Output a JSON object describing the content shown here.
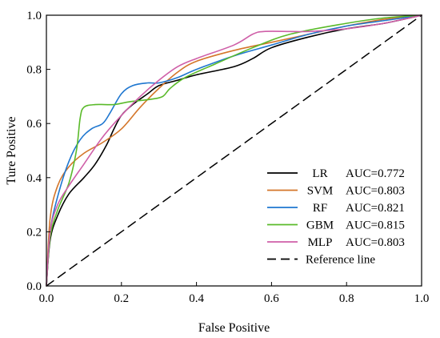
{
  "chart_data": {
    "type": "line",
    "xlabel": "False Positive",
    "ylabel": "Ture Positive",
    "xlim": [
      0,
      1
    ],
    "ylim": [
      0,
      1
    ],
    "xticks": [
      "0.0",
      "0.2",
      "0.4",
      "0.6",
      "0.8",
      "1.0"
    ],
    "yticks": [
      "0.0",
      "0.2",
      "0.4",
      "0.6",
      "0.8",
      "1.0"
    ],
    "grid": false,
    "legend_position": "bottom-right",
    "series": [
      {
        "name": "LR",
        "auc": "AUC=0.772",
        "color": "#000000",
        "points": [
          [
            0,
            0
          ],
          [
            0.01,
            0.17
          ],
          [
            0.03,
            0.26
          ],
          [
            0.06,
            0.34
          ],
          [
            0.1,
            0.4
          ],
          [
            0.13,
            0.45
          ],
          [
            0.16,
            0.52
          ],
          [
            0.18,
            0.58
          ],
          [
            0.2,
            0.63
          ],
          [
            0.23,
            0.67
          ],
          [
            0.27,
            0.71
          ],
          [
            0.3,
            0.74
          ],
          [
            0.35,
            0.76
          ],
          [
            0.4,
            0.78
          ],
          [
            0.5,
            0.81
          ],
          [
            0.55,
            0.84
          ],
          [
            0.6,
            0.88
          ],
          [
            0.7,
            0.92
          ],
          [
            0.8,
            0.95
          ],
          [
            0.9,
            0.97
          ],
          [
            1,
            1
          ]
        ]
      },
      {
        "name": "SVM",
        "auc": "AUC=0.803",
        "color": "#d4762a",
        "points": [
          [
            0,
            0
          ],
          [
            0.01,
            0.25
          ],
          [
            0.03,
            0.37
          ],
          [
            0.06,
            0.44
          ],
          [
            0.1,
            0.49
          ],
          [
            0.15,
            0.53
          ],
          [
            0.2,
            0.58
          ],
          [
            0.25,
            0.66
          ],
          [
            0.3,
            0.73
          ],
          [
            0.35,
            0.79
          ],
          [
            0.4,
            0.83
          ],
          [
            0.5,
            0.87
          ],
          [
            0.6,
            0.9
          ],
          [
            0.7,
            0.93
          ],
          [
            0.8,
            0.96
          ],
          [
            0.9,
            0.985
          ],
          [
            1,
            1
          ]
        ]
      },
      {
        "name": "RF",
        "auc": "AUC=0.821",
        "color": "#1f77d0",
        "points": [
          [
            0,
            0
          ],
          [
            0.01,
            0.2
          ],
          [
            0.03,
            0.33
          ],
          [
            0.06,
            0.46
          ],
          [
            0.09,
            0.54
          ],
          [
            0.12,
            0.58
          ],
          [
            0.15,
            0.6
          ],
          [
            0.17,
            0.64
          ],
          [
            0.2,
            0.71
          ],
          [
            0.23,
            0.74
          ],
          [
            0.27,
            0.75
          ],
          [
            0.3,
            0.75
          ],
          [
            0.35,
            0.77
          ],
          [
            0.4,
            0.8
          ],
          [
            0.5,
            0.85
          ],
          [
            0.6,
            0.89
          ],
          [
            0.7,
            0.93
          ],
          [
            0.8,
            0.96
          ],
          [
            0.9,
            0.98
          ],
          [
            1,
            1
          ]
        ]
      },
      {
        "name": "GBM",
        "auc": "AUC=0.815",
        "color": "#5aba2a",
        "points": [
          [
            0,
            0
          ],
          [
            0.01,
            0.18
          ],
          [
            0.03,
            0.28
          ],
          [
            0.06,
            0.38
          ],
          [
            0.08,
            0.5
          ],
          [
            0.09,
            0.62
          ],
          [
            0.1,
            0.66
          ],
          [
            0.13,
            0.67
          ],
          [
            0.18,
            0.67
          ],
          [
            0.22,
            0.68
          ],
          [
            0.28,
            0.69
          ],
          [
            0.31,
            0.7
          ],
          [
            0.33,
            0.73
          ],
          [
            0.37,
            0.77
          ],
          [
            0.45,
            0.82
          ],
          [
            0.55,
            0.88
          ],
          [
            0.65,
            0.93
          ],
          [
            0.8,
            0.97
          ],
          [
            0.9,
            0.99
          ],
          [
            1,
            1
          ]
        ]
      },
      {
        "name": "MLP",
        "auc": "AUC=0.803",
        "color": "#cf5fa8",
        "points": [
          [
            0,
            0
          ],
          [
            0.01,
            0.2
          ],
          [
            0.03,
            0.3
          ],
          [
            0.06,
            0.37
          ],
          [
            0.1,
            0.45
          ],
          [
            0.15,
            0.55
          ],
          [
            0.2,
            0.63
          ],
          [
            0.25,
            0.7
          ],
          [
            0.3,
            0.76
          ],
          [
            0.35,
            0.81
          ],
          [
            0.4,
            0.84
          ],
          [
            0.5,
            0.89
          ],
          [
            0.55,
            0.93
          ],
          [
            0.58,
            0.94
          ],
          [
            0.65,
            0.94
          ],
          [
            0.7,
            0.94
          ],
          [
            0.8,
            0.95
          ],
          [
            0.9,
            0.97
          ],
          [
            1,
            1
          ]
        ]
      },
      {
        "name": "Reference line",
        "auc": "",
        "color": "#000000",
        "dashed": true,
        "points": [
          [
            0,
            0
          ],
          [
            1,
            1
          ]
        ]
      }
    ]
  }
}
